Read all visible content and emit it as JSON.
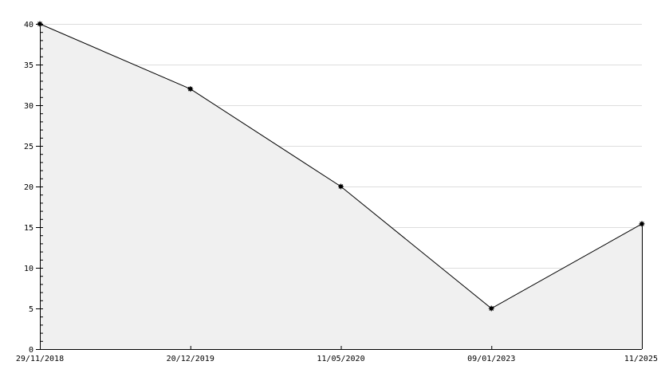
{
  "chart_data": {
    "type": "area",
    "categories": [
      "29/11/2018",
      "20/12/2019",
      "11/05/2020",
      "09/01/2023",
      "11/2025"
    ],
    "values": [
      40,
      32,
      20,
      5,
      15.4
    ],
    "title": "",
    "xlabel": "",
    "ylabel": "",
    "ylim": [
      0,
      40
    ],
    "yticks": [
      0,
      5,
      10,
      15,
      20,
      25,
      30,
      35,
      40
    ],
    "grid": "horizontal",
    "colors": {
      "line": "#000000",
      "fill": "#f0f0f0",
      "grid": "#dddddd",
      "marker": "#000000"
    }
  }
}
